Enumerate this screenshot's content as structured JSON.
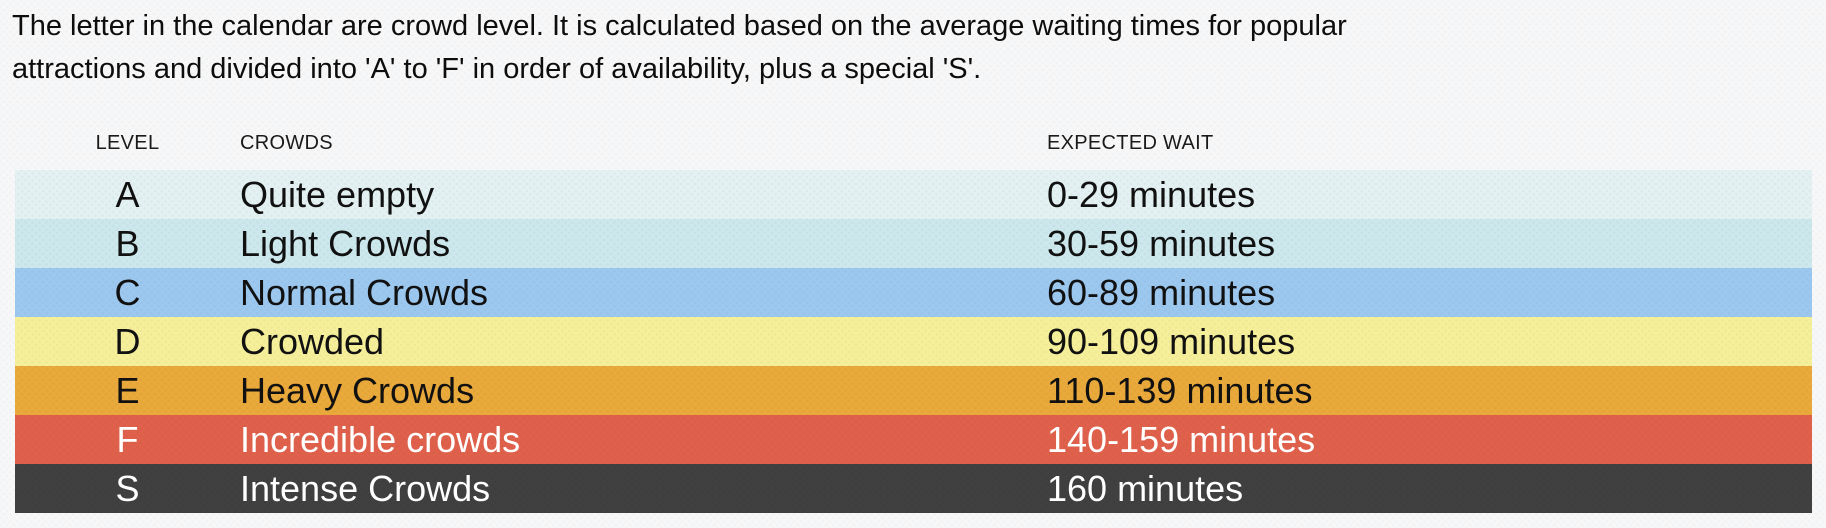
{
  "intro": {
    "text": "The letter in the calendar are crowd level. It is calculated based on the average waiting times for popular attractions and divided into 'A' to 'F' in order of availability, plus a special 'S'."
  },
  "colors": {
    "page_background": "#f7f7f8",
    "body_text": "#0d0d0d"
  },
  "table": {
    "headers": {
      "level": "LEVEL",
      "crowds": "CROWDS",
      "wait": "EXPECTED WAIT"
    },
    "rows": [
      {
        "level": "A",
        "crowds": "Quite empty",
        "wait": "0-29 minutes",
        "background": "#e3f1f2",
        "text_color": "#111111"
      },
      {
        "level": "B",
        "crowds": "Light Crowds",
        "wait": "30-59 minutes",
        "background": "#cce8ed",
        "text_color": "#111111"
      },
      {
        "level": "C",
        "crowds": "Normal Crowds",
        "wait": "60-89 minutes",
        "background": "#9cc8ef",
        "text_color": "#111111"
      },
      {
        "level": "D",
        "crowds": "Crowded",
        "wait": "90-109 minutes",
        "background": "#f6ef9a",
        "text_color": "#111111"
      },
      {
        "level": "E",
        "crowds": "Heavy Crowds",
        "wait": "110-139 minutes",
        "background": "#e9a93b",
        "text_color": "#111111"
      },
      {
        "level": "F",
        "crowds": "Incredible crowds",
        "wait": "140-159 minutes",
        "background": "#e0614b",
        "text_color": "#ffffff"
      },
      {
        "level": "S",
        "crowds": "Intense Crowds",
        "wait": "160 minutes",
        "background": "#404040",
        "text_color": "#ffffff"
      }
    ]
  }
}
